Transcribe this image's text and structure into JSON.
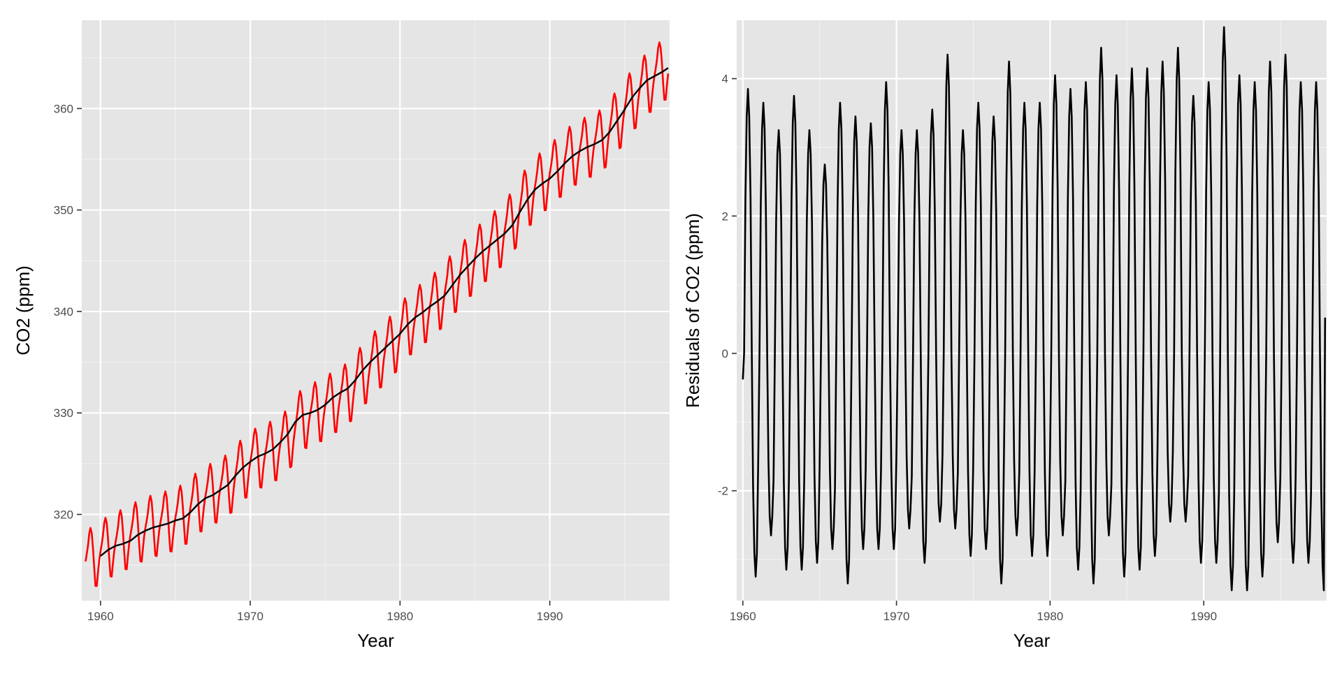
{
  "chart_data": [
    {
      "type": "line",
      "title": "",
      "xlabel": "Year",
      "ylabel": "CO2 (ppm)",
      "xlim": [
        1958.75,
        1998.0
      ],
      "ylim": [
        311.5,
        368.7
      ],
      "x_ticks": [
        1960,
        1970,
        1980,
        1990
      ],
      "y_ticks": [
        320,
        330,
        340,
        350,
        360
      ],
      "grid": true,
      "series": [
        {
          "color": "#ff0000",
          "x_start": 1959.0,
          "x_end": 1997.917,
          "step_years": 0.0833,
          "annual_cycle_month_offsets_ppm": [
            -0.03,
            0.62,
            1.36,
            2.47,
            2.94,
            2.32,
            0.74,
            -1.35,
            -3.12,
            -3.21,
            -1.95,
            -0.83
          ],
          "yearly_mean_ppm": {
            "1959": 315.9,
            "1960": 316.9,
            "1961": 317.6,
            "1962": 318.4,
            "1963": 319.0,
            "1964": 319.4,
            "1965": 320.0,
            "1966": 321.3,
            "1967": 322.2,
            "1968": 323.0,
            "1969": 324.6,
            "1970": 325.7,
            "1971": 326.3,
            "1972": 327.4,
            "1973": 329.6,
            "1974": 330.2,
            "1975": 331.1,
            "1976": 332.0,
            "1977": 333.8,
            "1978": 335.4,
            "1979": 336.8,
            "1980": 338.7,
            "1981": 339.9,
            "1982": 341.1,
            "1983": 342.8,
            "1984": 344.4,
            "1985": 345.9,
            "1986": 347.2,
            "1987": 348.9,
            "1988": 351.4,
            "1989": 352.9,
            "1990": 354.2,
            "1991": 355.5,
            "1992": 356.3,
            "1993": 357.0,
            "1994": 358.9,
            "1995": 360.9,
            "1996": 362.6,
            "1997": 363.8
          }
        },
        {
          "color": "#000000",
          "x": [
            1960.0,
            1960.5,
            1961.0,
            1961.5,
            1962.0,
            1962.5,
            1963.0,
            1963.5,
            1964.0,
            1964.5,
            1965.0,
            1965.5,
            1966.0,
            1966.5,
            1967.0,
            1967.5,
            1968.0,
            1968.5,
            1969.0,
            1969.5,
            1970.0,
            1970.5,
            1971.0,
            1971.5,
            1972.0,
            1972.5,
            1973.0,
            1973.5,
            1974.0,
            1974.5,
            1975.0,
            1975.5,
            1976.0,
            1976.5,
            1977.0,
            1977.5,
            1978.0,
            1978.5,
            1979.0,
            1979.5,
            1980.0,
            1980.5,
            1981.0,
            1981.5,
            1982.0,
            1982.5,
            1983.0,
            1983.5,
            1984.0,
            1984.5,
            1985.0,
            1985.5,
            1986.0,
            1986.5,
            1987.0,
            1987.5,
            1988.0,
            1988.5,
            1989.0,
            1989.5,
            1990.0,
            1990.5,
            1991.0,
            1991.5,
            1992.0,
            1992.5,
            1993.0,
            1993.5,
            1994.0,
            1994.5,
            1995.0,
            1995.5,
            1996.0,
            1996.5,
            1997.0,
            1997.5,
            1997.9
          ],
          "y": [
            315.9,
            316.5,
            316.9,
            317.1,
            317.4,
            318.0,
            318.4,
            318.7,
            318.9,
            319.1,
            319.4,
            319.6,
            320.2,
            321.0,
            321.6,
            321.9,
            322.4,
            322.9,
            323.8,
            324.6,
            325.2,
            325.7,
            326.0,
            326.4,
            327.1,
            327.9,
            329.1,
            329.8,
            330.0,
            330.3,
            330.8,
            331.5,
            332.0,
            332.4,
            333.2,
            334.2,
            335.0,
            335.7,
            336.4,
            337.1,
            337.8,
            338.7,
            339.4,
            339.9,
            340.5,
            341.0,
            341.6,
            342.6,
            343.6,
            344.4,
            345.2,
            345.9,
            346.5,
            347.1,
            347.7,
            348.5,
            349.8,
            351.0,
            352.0,
            352.6,
            353.1,
            353.8,
            354.6,
            355.3,
            355.8,
            356.2,
            356.5,
            356.9,
            357.7,
            358.8,
            359.9,
            361.1,
            362.0,
            362.8,
            363.2,
            363.6,
            364.0
          ]
        }
      ]
    },
    {
      "type": "line",
      "title": "",
      "xlabel": "Year",
      "ylabel": "Residuals of CO2 (ppm)",
      "xlim": [
        1959.6,
        1998.0
      ],
      "ylim": [
        -3.6,
        4.85
      ],
      "x_ticks": [
        1960,
        1970,
        1980,
        1990
      ],
      "y_ticks": [
        -2,
        0,
        2,
        4
      ],
      "grid": true,
      "series": [
        {
          "color": "#000000",
          "x_start": 1960.0,
          "x_end": 1997.917,
          "step_years": 0.0833,
          "start_value": -0.38,
          "end_value": 0.52,
          "yearly_peak": [
            3.6,
            3.4,
            3.0,
            3.5,
            3.0,
            2.5,
            3.4,
            3.2,
            3.1,
            3.7,
            3.0,
            3.0,
            3.3,
            4.1,
            3.0,
            3.4,
            3.2,
            4.0,
            3.4,
            3.4,
            3.8,
            3.6,
            3.7,
            4.2,
            3.8,
            3.9,
            3.9,
            4.0,
            4.2,
            3.5,
            3.7,
            4.5,
            3.8,
            3.7,
            4.0,
            4.1,
            3.7,
            3.7
          ],
          "yearly_trough": [
            -3.0,
            -2.4,
            -2.9,
            -2.9,
            -2.8,
            -2.6,
            -3.1,
            -2.6,
            -2.6,
            -2.6,
            -2.3,
            -2.8,
            -2.2,
            -2.3,
            -2.7,
            -2.6,
            -3.1,
            -2.4,
            -2.7,
            -2.7,
            -2.4,
            -2.9,
            -3.1,
            -2.4,
            -3.0,
            -2.9,
            -2.7,
            -2.2,
            -2.2,
            -2.8,
            -2.8,
            -3.2,
            -3.2,
            -3.0,
            -2.5,
            -2.8,
            -2.8,
            -3.2
          ]
        }
      ]
    }
  ]
}
